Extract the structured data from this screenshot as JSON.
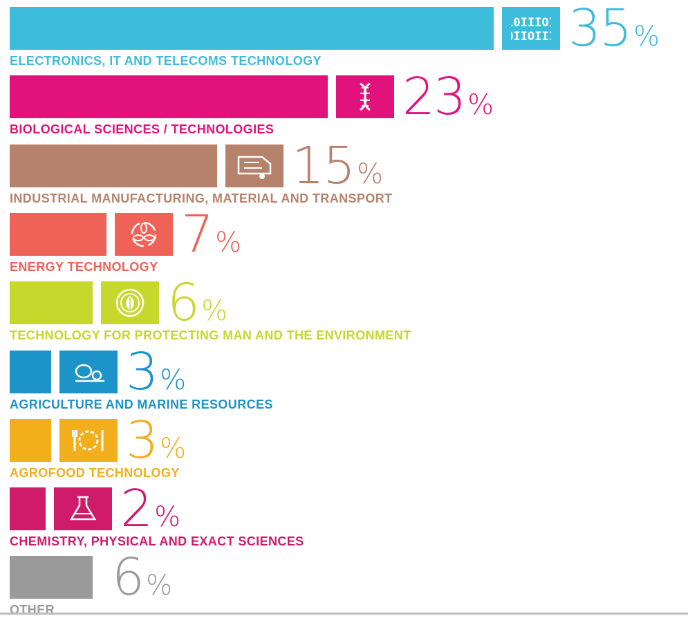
{
  "chart_data": {
    "type": "bar",
    "orientation": "horizontal",
    "unit": "%",
    "categories": [
      "ELECTRONICS, IT AND TELECOMS TECHNOLOGY",
      "BIOLOGICAL SCIENCES / TECHNOLOGIES",
      "INDUSTRIAL MANUFACTURING, MATERIAL AND TRANSPORT",
      "ENERGY TECHNOLOGY",
      "TECHNOLOGY FOR PROTECTING MAN AND THE ENVIRONMENT",
      "AGRICULTURE AND MARINE RESOURCES",
      "AGROFOOD TECHNOLOGY",
      "CHEMISTRY, PHYSICAL AND EXACT SCIENCES",
      "OTHER"
    ],
    "values": [
      35,
      23,
      15,
      7,
      6,
      3,
      3,
      2,
      6
    ],
    "colors": [
      "#3dbcdc",
      "#e2127c",
      "#b7826b",
      "#ee6258",
      "#c7d72c",
      "#1c93c9",
      "#f2ae1b",
      "#cf1b6a",
      "#9a9a9a"
    ],
    "icons": [
      "binary-code-icon",
      "dna-icon",
      "truck-icon",
      "energy-cycle-icon",
      "leaf-icon",
      "marine-creature-icon",
      "plate-cutlery-icon",
      "flask-icon",
      null
    ],
    "xlim": [
      0,
      35
    ],
    "grid": false,
    "legend": "none",
    "title": "",
    "xlabel": "",
    "ylabel": ""
  }
}
